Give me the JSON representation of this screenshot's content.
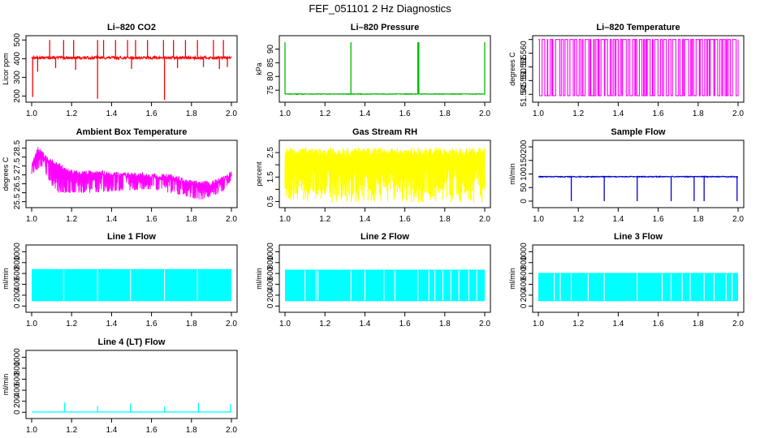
{
  "page": {
    "title": "FEF_051101  2 Hz Diagnostics"
  },
  "chart_data": [
    {
      "id": "co2",
      "type": "line",
      "title": "Li–820 CO2",
      "ylabel": "Licor ppm",
      "xlabel": "",
      "color": "#ff0000",
      "xlim": [
        1.0,
        2.0
      ],
      "ylim": [
        180,
        510
      ],
      "xticks": [
        "1.0",
        "1.2",
        "1.4",
        "1.6",
        "1.8",
        "2.0"
      ],
      "yticks": [
        200,
        300,
        400,
        500
      ],
      "pattern": {
        "kind": "baseline_spikes",
        "base": 405,
        "noise": 14,
        "up_spikes": [
          1.09,
          1.16,
          1.21,
          1.33,
          1.36,
          1.42,
          1.48,
          1.52,
          1.58,
          1.66,
          1.71,
          1.77,
          1.83,
          1.91,
          1.96
        ],
        "up_to": 500,
        "down_spikes": [
          [
            1.005,
            195
          ],
          [
            1.33,
            185
          ],
          [
            1.665,
            180
          ],
          [
            1.03,
            330
          ],
          [
            1.12,
            350
          ],
          [
            1.22,
            340
          ],
          [
            1.5,
            345
          ],
          [
            1.73,
            350
          ],
          [
            1.86,
            355
          ],
          [
            1.94,
            345
          ],
          [
            1.98,
            355
          ]
        ]
      }
    },
    {
      "id": "pressure",
      "type": "line",
      "title": "Li–820 Pressure",
      "ylabel": "kPa",
      "xlabel": "",
      "color": "#00bb00",
      "xlim": [
        1.0,
        2.0
      ],
      "ylim": [
        71.5,
        94
      ],
      "xticks": [
        "1.0",
        "1.2",
        "1.4",
        "1.6",
        "1.8",
        "2.0"
      ],
      "yticks": [
        75,
        80,
        85,
        90
      ],
      "pattern": {
        "kind": "baseline_spikes",
        "base": 73.6,
        "noise": 0.25,
        "up_spikes": [
          1.0,
          1.33,
          1.665,
          1.665,
          1.67,
          2.0
        ],
        "up_to": 92.5,
        "down_spikes": []
      }
    },
    {
      "id": "licor_temp",
      "type": "line",
      "title": "Li–820 Temperature",
      "ylabel": "degrees C",
      "xlabel": "",
      "color": "#ff00ff",
      "xlim": [
        1.0,
        2.0
      ],
      "ylim": [
        51.543,
        51.5655
      ],
      "xticks": [
        "1.0",
        "1.2",
        "1.4",
        "1.6",
        "1.8",
        "2.0"
      ],
      "yticks": [
        51.545,
        51.55,
        51.555,
        51.56,
        51.565
      ],
      "ytick_labels": [
        "51.545",
        "51.550",
        "51.555",
        "51.560",
        ""
      ],
      "pattern": {
        "kind": "two_level",
        "low": 51.5445,
        "high": 51.565,
        "seed": 7
      }
    },
    {
      "id": "box_temp",
      "type": "line",
      "title": "Ambient Box Temperature",
      "ylabel": "degrees C",
      "xlabel": "",
      "color": "#ff00ff",
      "xlim": [
        1.0,
        2.0
      ],
      "ylim": [
        25.3,
        28.8
      ],
      "xticks": [
        "1.0",
        "1.2",
        "1.4",
        "1.6",
        "1.8",
        "2.0"
      ],
      "yticks": [
        25.5,
        26.5,
        27.5,
        28.5
      ],
      "yticks_mid": [
        26.0,
        27.0,
        28.0
      ],
      "pattern": {
        "kind": "noisy_trend",
        "upper": [
          [
            1.0,
            27.6
          ],
          [
            1.03,
            28.6
          ],
          [
            1.08,
            28.0
          ],
          [
            1.2,
            27.3
          ],
          [
            1.5,
            27.15
          ],
          [
            1.7,
            27.05
          ],
          [
            1.8,
            26.7
          ],
          [
            1.9,
            26.65
          ],
          [
            2.0,
            27.2
          ]
        ],
        "lower": [
          [
            1.0,
            27.0
          ],
          [
            1.05,
            27.5
          ],
          [
            1.12,
            26.0
          ],
          [
            1.3,
            26.0
          ],
          [
            1.6,
            26.2
          ],
          [
            1.85,
            25.6
          ],
          [
            1.95,
            26.0
          ],
          [
            2.0,
            26.7
          ]
        ]
      }
    },
    {
      "id": "rh",
      "type": "line",
      "title": "Gas Stream RH",
      "ylabel": "percent",
      "xlabel": "",
      "color": "#ffff00",
      "xlim": [
        1.0,
        2.0
      ],
      "ylim": [
        0.35,
        2.9
      ],
      "xticks": [
        "1.0",
        "1.2",
        "1.4",
        "1.6",
        "1.8",
        "2.0"
      ],
      "yticks": [
        0.5,
        1.5,
        2.5
      ],
      "yticks_mid": [
        1.0,
        2.0
      ],
      "pattern": {
        "kind": "noise_band",
        "top": 2.7,
        "bottom": 0.45,
        "mid": 1.9
      }
    },
    {
      "id": "sample_flow",
      "type": "line",
      "title": "Sample Flow",
      "ylabel": "ml/min",
      "xlabel": "",
      "color": "#0000cc",
      "xlim": [
        1.0,
        2.0
      ],
      "ylim": [
        -15,
        215
      ],
      "xticks": [
        "1.0",
        "1.2",
        "1.4",
        "1.6",
        "1.8",
        "2.0"
      ],
      "yticks": [
        0,
        50,
        100,
        150,
        200
      ],
      "pattern": {
        "kind": "baseline_spikes",
        "base": 90,
        "noise": 3,
        "up_spikes": [],
        "up_to": 90,
        "down_spikes": [
          [
            1.165,
            0
          ],
          [
            1.33,
            0
          ],
          [
            1.495,
            0
          ],
          [
            1.665,
            0
          ],
          [
            1.78,
            0
          ],
          [
            1.83,
            0
          ],
          [
            1.995,
            0
          ]
        ]
      }
    },
    {
      "id": "line1",
      "type": "line",
      "title": "Line 1 Flow",
      "ylabel": "ml/min",
      "xlabel": "",
      "color": "#00ffff",
      "xlim": [
        1.0,
        2.0
      ],
      "ylim": [
        -70,
        1080
      ],
      "xticks": [
        "1.0",
        "1.2",
        "1.4",
        "1.6",
        "1.8",
        "2.0"
      ],
      "yticks": [
        0,
        200,
        400,
        600,
        800,
        1000
      ],
      "pattern": {
        "kind": "flow_band",
        "top": 680,
        "bottom": 90,
        "gaps": [
          1.16,
          1.33,
          1.495,
          1.665,
          1.83
        ]
      }
    },
    {
      "id": "line2",
      "type": "line",
      "title": "Line 2 Flow",
      "ylabel": "ml/min",
      "xlabel": "",
      "color": "#00ffff",
      "xlim": [
        1.0,
        2.0
      ],
      "ylim": [
        -70,
        1080
      ],
      "xticks": [
        "1.0",
        "1.2",
        "1.4",
        "1.6",
        "1.8",
        "2.0"
      ],
      "yticks": [
        0,
        200,
        400,
        600,
        800,
        1000
      ],
      "pattern": {
        "kind": "flow_band",
        "top": 670,
        "bottom": 90,
        "gaps": [
          1.1,
          1.155,
          1.165,
          1.33,
          1.4,
          1.495,
          1.55,
          1.665,
          1.72,
          1.75,
          1.79,
          1.83,
          1.87,
          1.92,
          1.96
        ]
      }
    },
    {
      "id": "line3",
      "type": "line",
      "title": "Line 3 Flow",
      "ylabel": "ml/min",
      "xlabel": "",
      "color": "#00ffff",
      "xlim": [
        1.0,
        2.0
      ],
      "ylim": [
        -70,
        1080
      ],
      "xticks": [
        "1.0",
        "1.2",
        "1.4",
        "1.6",
        "1.8",
        "2.0"
      ],
      "yticks": [
        0,
        200,
        400,
        600,
        800,
        1000
      ],
      "pattern": {
        "kind": "flow_band",
        "top": 610,
        "bottom": 90,
        "gaps": [
          1.08,
          1.11,
          1.165,
          1.25,
          1.33,
          1.495,
          1.62,
          1.665,
          1.72,
          1.76,
          1.83,
          1.88,
          1.94,
          1.97
        ]
      }
    },
    {
      "id": "line4",
      "type": "line",
      "title": "Line 4 (LT) Flow",
      "ylabel": "ml/min",
      "xlabel": "",
      "color": "#00ffff",
      "xlim": [
        1.0,
        2.0
      ],
      "ylim": [
        -70,
        1080
      ],
      "xticks": [
        "1.0",
        "1.2",
        "1.4",
        "1.6",
        "1.8",
        "2.0"
      ],
      "yticks": [
        0,
        200,
        400,
        600,
        800,
        1000
      ],
      "pattern": {
        "kind": "baseline_spikes",
        "base": 5,
        "noise": 2,
        "up_spikes": [],
        "up_to": 5,
        "peaks": [
          [
            1.165,
            180
          ],
          [
            1.33,
            110
          ],
          [
            1.495,
            160
          ],
          [
            1.665,
            100
          ],
          [
            1.835,
            175
          ],
          [
            1.995,
            150
          ]
        ],
        "down_spikes": []
      }
    }
  ]
}
